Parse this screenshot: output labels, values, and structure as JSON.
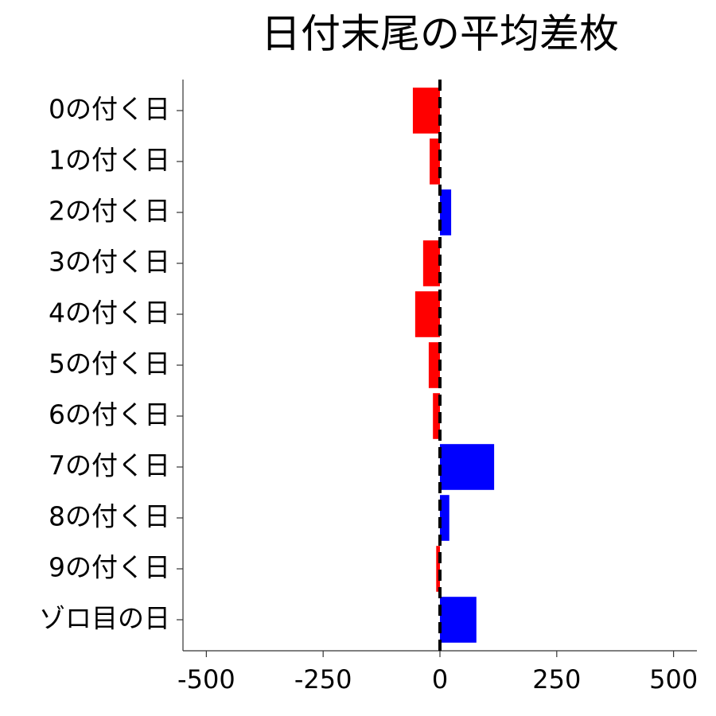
{
  "chart_data": {
    "type": "hbar",
    "title": "日付末尾の平均差枚",
    "categories": [
      "0の付く日",
      "1の付く日",
      "2の付く日",
      "3の付く日",
      "4の付く日",
      "5の付く日",
      "6の付く日",
      "7の付く日",
      "8の付く日",
      "9の付く日",
      "ゾロ目の日"
    ],
    "values": [
      -58,
      -22,
      24,
      -36,
      -53,
      -24,
      -15,
      116,
      20,
      -8,
      78
    ],
    "colors": [
      "#ff0000",
      "#ff0000",
      "#0000ff",
      "#ff0000",
      "#ff0000",
      "#ff0000",
      "#ff0000",
      "#0000ff",
      "#0000ff",
      "#ff0000",
      "#0000ff"
    ],
    "xlim": [
      -550,
      550
    ],
    "xticks": [
      -500,
      -250,
      0,
      250,
      500
    ],
    "vline": 0,
    "grid": false
  }
}
